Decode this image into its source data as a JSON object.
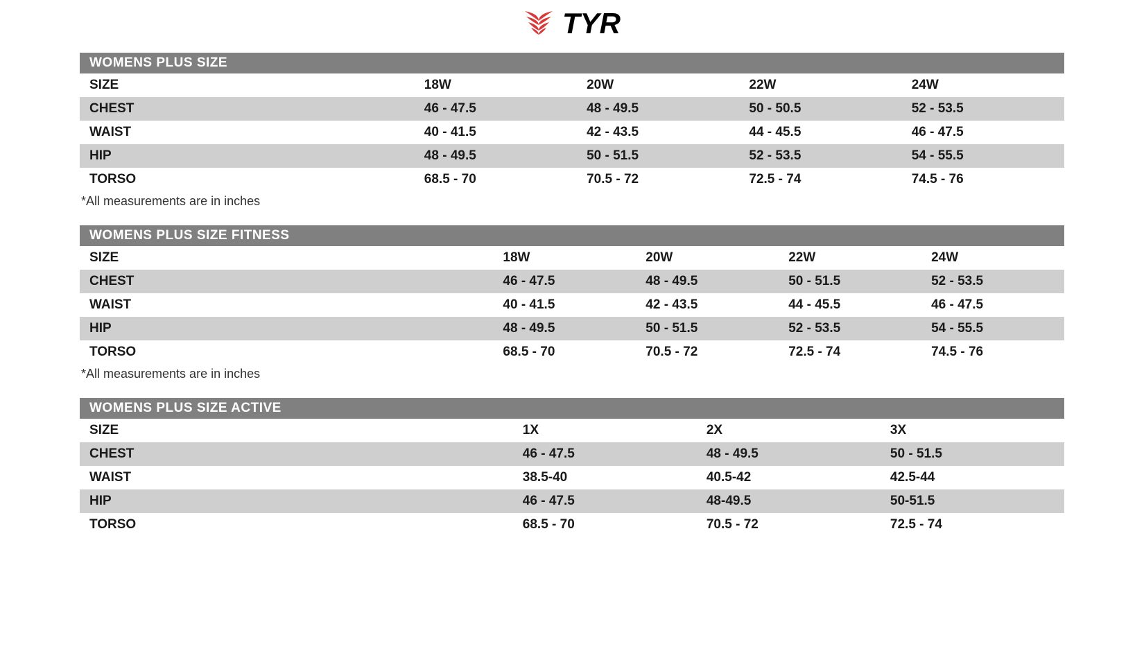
{
  "brand": {
    "name": "TYR",
    "logo_color": "#d83a3a",
    "text_color": "#000000"
  },
  "footnote": "*All measurements are in inches",
  "colors": {
    "header_bg": "#808080",
    "header_text": "#ffffff",
    "row_odd_bg": "#cfcfcf",
    "row_even_bg": "#ffffff",
    "text": "#1a1a1a"
  },
  "tables": [
    {
      "title": "WOMENS PLUS SIZE",
      "label_col_width_pct": 34,
      "columns": [
        "18W",
        "20W",
        "22W",
        "24W"
      ],
      "rows": [
        {
          "label": "SIZE",
          "cells": [
            "18W",
            "20W",
            "22W",
            "24W"
          ]
        },
        {
          "label": "CHEST",
          "cells": [
            "46 - 47.5",
            "48 - 49.5",
            "50 - 50.5",
            "52 - 53.5"
          ]
        },
        {
          "label": "WAIST",
          "cells": [
            "40 - 41.5",
            "42 - 43.5",
            "44 - 45.5",
            "46 - 47.5"
          ]
        },
        {
          "label": "HIP",
          "cells": [
            "48 - 49.5",
            "50 - 51.5",
            "52 - 53.5",
            "54 - 55.5"
          ]
        },
        {
          "label": "TORSO",
          "cells": [
            "68.5 - 70",
            "70.5 - 72",
            "72.5 - 74",
            "74.5 - 76"
          ]
        }
      ],
      "show_footnote": true
    },
    {
      "title": "WOMENS PLUS SIZE FITNESS",
      "label_col_width_pct": 42,
      "columns": [
        "18W",
        "20W",
        "22W",
        "24W"
      ],
      "rows": [
        {
          "label": "SIZE",
          "cells": [
            "18W",
            "20W",
            "22W",
            "24W"
          ]
        },
        {
          "label": "CHEST",
          "cells": [
            "46 - 47.5",
            "48 - 49.5",
            "50 - 51.5",
            "52 - 53.5"
          ]
        },
        {
          "label": "WAIST",
          "cells": [
            "40 - 41.5",
            "42 - 43.5",
            "44 - 45.5",
            "46 - 47.5"
          ]
        },
        {
          "label": "HIP",
          "cells": [
            "48 - 49.5",
            "50 - 51.5",
            "52 - 53.5",
            "54 - 55.5"
          ]
        },
        {
          "label": "TORSO",
          "cells": [
            "68.5 - 70",
            "70.5 - 72",
            "72.5 - 74",
            "74.5 - 76"
          ]
        }
      ],
      "show_footnote": true
    },
    {
      "title": "WOMENS PLUS SIZE ACTIVE",
      "label_col_width_pct": 44,
      "columns": [
        "1X",
        "2X",
        "3X"
      ],
      "rows": [
        {
          "label": "SIZE",
          "cells": [
            "1X",
            "2X",
            "3X"
          ]
        },
        {
          "label": "CHEST",
          "cells": [
            "46 - 47.5",
            "48 - 49.5",
            "50 - 51.5"
          ]
        },
        {
          "label": "WAIST",
          "cells": [
            "38.5-40",
            "40.5-42",
            "42.5-44"
          ]
        },
        {
          "label": "HIP",
          "cells": [
            "46 - 47.5",
            "48-49.5",
            "50-51.5"
          ]
        },
        {
          "label": "TORSO",
          "cells": [
            "68.5 - 70",
            "70.5 - 72",
            "72.5 - 74"
          ]
        }
      ],
      "show_footnote": false
    }
  ]
}
